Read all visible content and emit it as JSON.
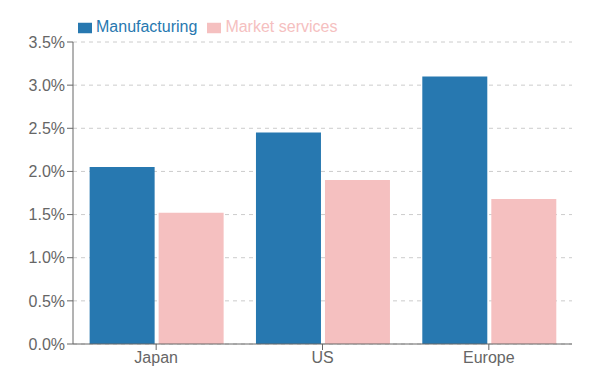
{
  "chart_data": {
    "type": "bar",
    "categories": [
      "Japan",
      "US",
      "Europe"
    ],
    "series": [
      {
        "name": "Manufacturing",
        "color": "#2778b0",
        "values": [
          0.0205,
          0.0245,
          0.031
        ]
      },
      {
        "name": "Market services",
        "color": "#f5c0c0",
        "values": [
          0.0152,
          0.019,
          0.0168
        ]
      }
    ],
    "ylim": [
      0,
      0.035
    ],
    "yticks": [
      {
        "value": 0.0,
        "label": "0.0%"
      },
      {
        "value": 0.005,
        "label": "0.5%"
      },
      {
        "value": 0.01,
        "label": "1.0%"
      },
      {
        "value": 0.015,
        "label": "1.5%"
      },
      {
        "value": 0.02,
        "label": "2.0%"
      },
      {
        "value": 0.025,
        "label": "2.5%"
      },
      {
        "value": 0.03,
        "label": "3.0%"
      },
      {
        "value": 0.035,
        "label": "3.5%"
      }
    ],
    "grid": true,
    "legend": "upper left"
  }
}
